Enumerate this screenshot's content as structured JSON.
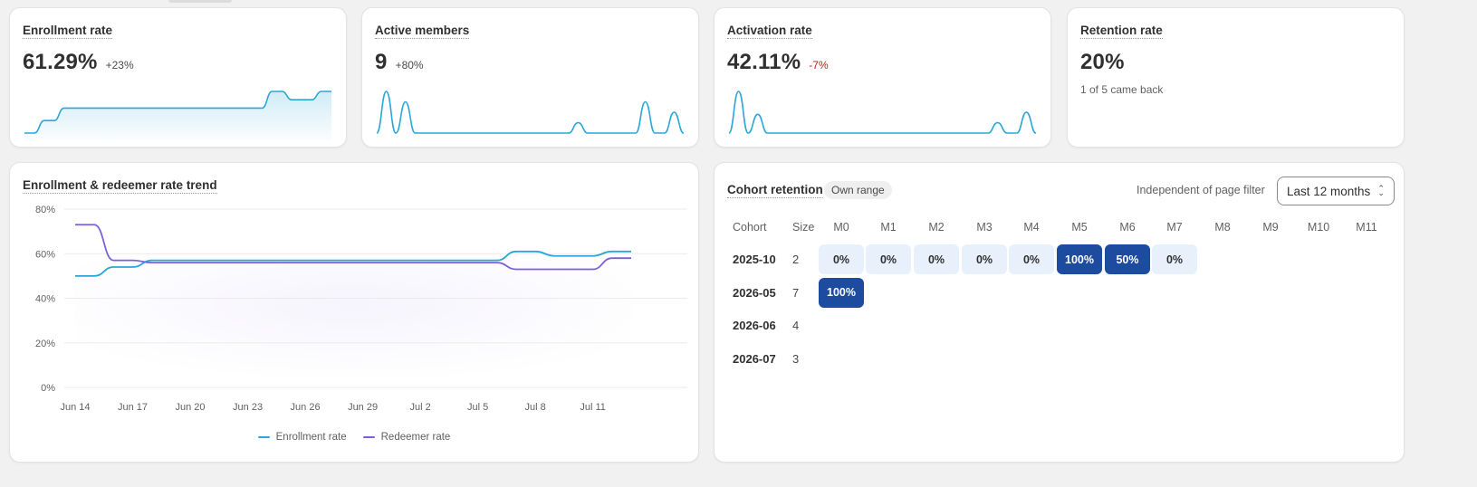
{
  "metrics": [
    {
      "title": "Enrollment rate",
      "value": "61.29%",
      "delta": "+23%",
      "delta_negative": false,
      "sparkline": [
        0,
        0,
        0.3,
        0.3,
        0.6,
        0.6,
        0.6,
        0.6,
        0.6,
        0.6,
        0.6,
        0.6,
        0.6,
        0.6,
        0.6,
        0.6,
        0.6,
        0.6,
        0.6,
        0.6,
        0.6,
        0.6,
        0.6,
        0.6,
        0.6,
        1,
        1,
        0.8,
        0.8,
        0.8,
        1,
        1
      ],
      "spark_fill": true
    },
    {
      "title": "Active members",
      "value": "9",
      "delta": "+80%",
      "delta_negative": false,
      "sparkline": [
        0,
        1,
        0,
        0.75,
        0,
        0,
        0,
        0,
        0,
        0,
        0,
        0,
        0,
        0,
        0,
        0,
        0,
        0,
        0,
        0,
        0,
        0.25,
        0,
        0,
        0,
        0,
        0,
        0,
        0.75,
        0,
        0,
        0.5,
        0
      ],
      "spark_fill": false
    },
    {
      "title": "Activation rate",
      "value": "42.11%",
      "delta": "-7%",
      "delta_negative": true,
      "sparkline": [
        0,
        1,
        0,
        0.45,
        0,
        0,
        0,
        0,
        0,
        0,
        0,
        0,
        0,
        0,
        0,
        0,
        0,
        0,
        0,
        0,
        0,
        0,
        0,
        0,
        0,
        0,
        0,
        0,
        0.25,
        0,
        0,
        0.5,
        0
      ],
      "spark_fill": false
    },
    {
      "title": "Retention rate",
      "value": "20%",
      "subtitle": "1 of 5 came back"
    }
  ],
  "trend": {
    "title": "Enrollment & redeemer rate trend",
    "y_ticks": [
      "80%",
      "60%",
      "40%",
      "20%",
      "0%"
    ],
    "x_ticks": [
      "Jun 14",
      "Jun 17",
      "Jun 20",
      "Jun 23",
      "Jun 26",
      "Jun 29",
      "Jul 2",
      "Jul 5",
      "Jul 8",
      "Jul 11"
    ],
    "legend": [
      {
        "label": "Enrollment rate",
        "color": "#2aa6d9"
      },
      {
        "label": "Redeemer rate",
        "color": "#7b61d9"
      }
    ]
  },
  "chart_data": {
    "type": "line",
    "title": "Enrollment & redeemer rate trend",
    "ylim": [
      0,
      80
    ],
    "x": [
      "Jun 14",
      "Jun 15",
      "Jun 16",
      "Jun 17",
      "Jun 18",
      "Jun 19",
      "Jun 20",
      "Jun 21",
      "Jun 22",
      "Jun 23",
      "Jun 24",
      "Jun 25",
      "Jun 26",
      "Jun 27",
      "Jun 28",
      "Jun 29",
      "Jun 30",
      "Jul 1",
      "Jul 2",
      "Jul 3",
      "Jul 4",
      "Jul 5",
      "Jul 6",
      "Jul 7",
      "Jul 8",
      "Jul 9",
      "Jul 10",
      "Jul 11",
      "Jul 12",
      "Jul 13"
    ],
    "series": [
      {
        "name": "Enrollment rate",
        "values": [
          50,
          50,
          54,
          54,
          57,
          57,
          57,
          57,
          57,
          57,
          57,
          57,
          57,
          57,
          57,
          57,
          57,
          57,
          57,
          57,
          57,
          57,
          57,
          61,
          61,
          59,
          59,
          59,
          61,
          61
        ]
      },
      {
        "name": "Redeemer rate",
        "values": [
          73,
          73,
          57,
          57,
          56,
          56,
          56,
          56,
          56,
          56,
          56,
          56,
          56,
          56,
          56,
          56,
          56,
          56,
          56,
          56,
          56,
          56,
          56,
          53,
          53,
          53,
          53,
          53,
          58,
          58
        ]
      }
    ]
  },
  "cohort": {
    "title": "Cohort retention",
    "badge": "Own range",
    "note": "Independent of page filter",
    "range_label": "Last 12 months",
    "headers": [
      "Cohort",
      "Size",
      "M0",
      "M1",
      "M2",
      "M3",
      "M4",
      "M5",
      "M6",
      "M7",
      "M8",
      "M9",
      "M10",
      "M11"
    ],
    "rows": [
      {
        "cohort": "2025-10",
        "size": "2",
        "cells": [
          "0%",
          "0%",
          "0%",
          "0%",
          "0%",
          "100%",
          "50%",
          "0%"
        ],
        "values": [
          0,
          0,
          0,
          0,
          0,
          100,
          50,
          0
        ]
      },
      {
        "cohort": "2026-05",
        "size": "7",
        "cells": [
          "100%"
        ],
        "values": [
          100
        ]
      },
      {
        "cohort": "2026-06",
        "size": "4",
        "cells": [],
        "values": []
      },
      {
        "cohort": "2026-07",
        "size": "3",
        "cells": [],
        "values": []
      }
    ]
  }
}
